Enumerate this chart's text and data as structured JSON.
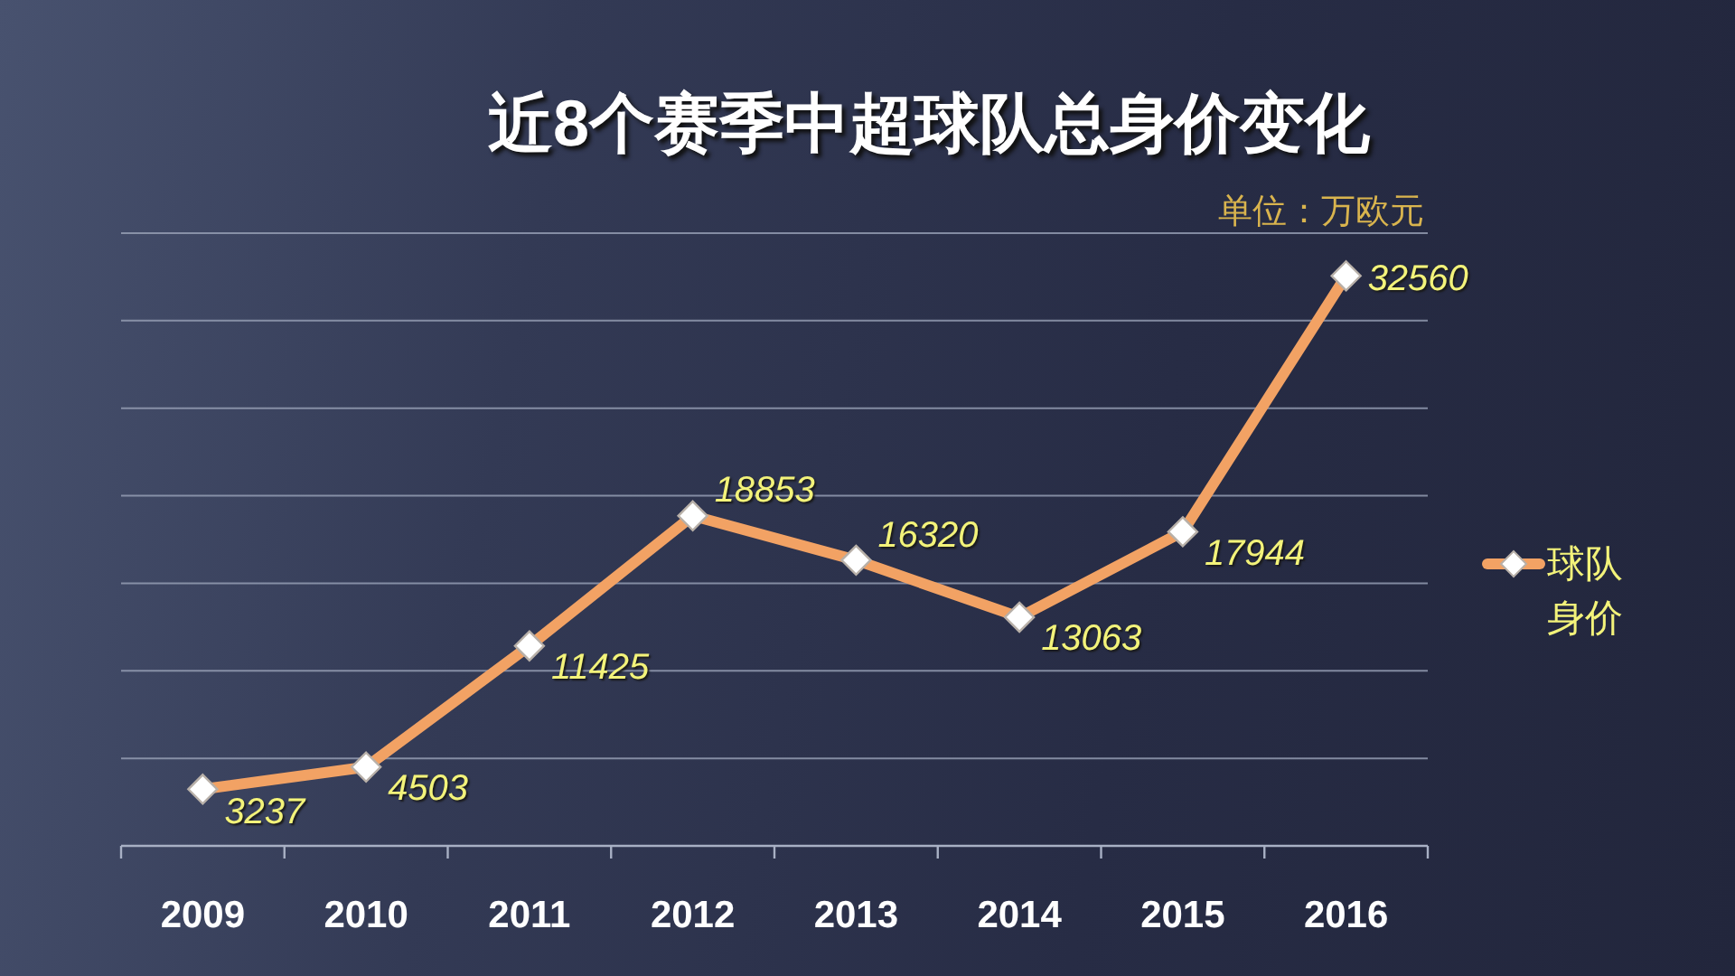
{
  "chart_data": {
    "type": "line",
    "title": "近8个赛季中超球队总身价变化",
    "annotations": [
      "单位：万欧元"
    ],
    "categories": [
      "2009",
      "2010",
      "2011",
      "2012",
      "2013",
      "2014",
      "2015",
      "2016"
    ],
    "series": [
      {
        "name": "球队身价",
        "color": "#f2a264",
        "values": [
          3237,
          4503,
          11425,
          18853,
          16320,
          13063,
          17944,
          32560
        ]
      }
    ],
    "ylim": [
      0,
      35000
    ],
    "yticks": [
      {
        "value": 0,
        "label": null
      },
      {
        "value": 5000,
        "label": null
      },
      {
        "value": 10000,
        "label": null
      },
      {
        "value": 15000,
        "label": null
      },
      {
        "value": 20000,
        "label": null
      },
      {
        "value": 25000,
        "label": null
      },
      {
        "value": 30000,
        "label": null
      },
      {
        "value": 35000,
        "label": null
      }
    ],
    "tick_labels": "x",
    "grid": "y",
    "legend": "right",
    "marker": "diamond",
    "data_labels": true
  }
}
